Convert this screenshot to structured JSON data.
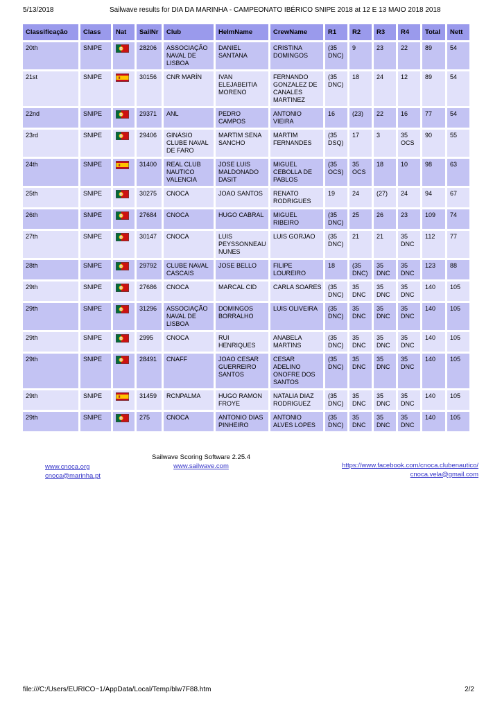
{
  "page": {
    "print_header": {
      "date": "5/13/2018",
      "title": "Sailwave results for DIA DA MARINHA - CAMPEONATO IBÉRICO SNIPE 2018 at 12 E 13 MAIO 2018 2018"
    },
    "print_footer": {
      "file_url": "file:///C:/Users/EURICO~1/AppData/Local/Temp/blw7F88.htm",
      "page_number": "2/2"
    }
  },
  "table": {
    "columns": [
      "Classificação",
      "Class",
      "Nat",
      "SailNr",
      "Club",
      "HelmName",
      "CrewName",
      "R1",
      "R2",
      "R3",
      "R4",
      "Total",
      "Nett"
    ],
    "rows": [
      {
        "rank": "20th",
        "class": "SNIPE",
        "nat": "PT",
        "sailnr": "28206",
        "club": "ASSOCIAÇÃO NAVAL DE LISBOA",
        "helm": "DANIEL SANTANA",
        "crew": "CRISTINA DOMINGOS",
        "r1": "(35 DNC)",
        "r2": "9",
        "r3": "23",
        "r4": "22",
        "total": "89",
        "nett": "54"
      },
      {
        "rank": "21st",
        "class": "SNIPE",
        "nat": "ES",
        "sailnr": "30156",
        "club": "CNR MARÍN",
        "helm": "IVAN ELEJABEITIA MORENO",
        "crew": "FERNANDO GONZALEZ DE CANALES MARTINEZ",
        "r1": "(35 DNC)",
        "r2": "18",
        "r3": "24",
        "r4": "12",
        "total": "89",
        "nett": "54"
      },
      {
        "rank": "22nd",
        "class": "SNIPE",
        "nat": "PT",
        "sailnr": "29371",
        "club": "ANL",
        "helm": "PEDRO CAMPOS",
        "crew": "ANTONIO VIEIRA",
        "r1": "16",
        "r2": "(23)",
        "r3": "22",
        "r4": "16",
        "total": "77",
        "nett": "54"
      },
      {
        "rank": "23rd",
        "class": "SNIPE",
        "nat": "PT",
        "sailnr": "29406",
        "club": "GINÁSIO CLUBE NAVAL DE FARO",
        "helm": "MARTIM SENA SANCHO",
        "crew": "MARTIM FERNANDES",
        "r1": "(35 DSQ)",
        "r2": "17",
        "r3": "3",
        "r4": "35 OCS",
        "total": "90",
        "nett": "55"
      },
      {
        "rank": "24th",
        "class": "SNIPE",
        "nat": "ES",
        "sailnr": "31400",
        "club": "REAL CLUB NAUTICO VALENCIA",
        "helm": "JOSE LUIS MALDONADO DASIT",
        "crew": "MIGUEL CEBOLLA DE PABLOS",
        "r1": "(35 OCS)",
        "r2": "35 OCS",
        "r3": "18",
        "r4": "10",
        "total": "98",
        "nett": "63"
      },
      {
        "rank": "25th",
        "class": "SNIPE",
        "nat": "PT",
        "sailnr": "30275",
        "club": "CNOCA",
        "helm": "JOAO SANTOS",
        "crew": "RENATO RODRIGUES",
        "r1": "19",
        "r2": "24",
        "r3": "(27)",
        "r4": "24",
        "total": "94",
        "nett": "67"
      },
      {
        "rank": "26th",
        "class": "SNIPE",
        "nat": "PT",
        "sailnr": "27684",
        "club": "CNOCA",
        "helm": "HUGO CABRAL",
        "crew": "MIGUEL RIBEIRO",
        "r1": "(35 DNC)",
        "r2": "25",
        "r3": "26",
        "r4": "23",
        "total": "109",
        "nett": "74"
      },
      {
        "rank": "27th",
        "class": "SNIPE",
        "nat": "PT",
        "sailnr": "30147",
        "club": "CNOCA",
        "helm": "LUIS PEYSSONNEAU NUNES",
        "crew": "LUIS GORJAO",
        "r1": "(35 DNC)",
        "r2": "21",
        "r3": "21",
        "r4": "35 DNC",
        "total": "112",
        "nett": "77"
      },
      {
        "rank": "28th",
        "class": "SNIPE",
        "nat": "PT",
        "sailnr": "29792",
        "club": "CLUBE NAVAL CASCAIS",
        "helm": "JOSE BELLO",
        "crew": "FILIPE LOUREIRO",
        "r1": "18",
        "r2": "(35 DNC)",
        "r3": "35 DNC",
        "r4": "35 DNC",
        "total": "123",
        "nett": "88"
      },
      {
        "rank": "29th",
        "class": "SNIPE",
        "nat": "PT",
        "sailnr": "27686",
        "club": "CNOCA",
        "helm": "MARCAL CID",
        "crew": "CARLA SOARES",
        "r1": "(35 DNC)",
        "r2": "35 DNC",
        "r3": "35 DNC",
        "r4": "35 DNC",
        "total": "140",
        "nett": "105"
      },
      {
        "rank": "29th",
        "class": "SNIPE",
        "nat": "PT",
        "sailnr": "31296",
        "club": "ASSOCIAÇÃO NAVAL DE LISBOA",
        "helm": "DOMINGOS BORRALHO",
        "crew": "LUIS OLIVEIRA",
        "r1": "(35 DNC)",
        "r2": "35 DNC",
        "r3": "35 DNC",
        "r4": "35 DNC",
        "total": "140",
        "nett": "105"
      },
      {
        "rank": "29th",
        "class": "SNIPE",
        "nat": "PT",
        "sailnr": "2995",
        "club": "CNOCA",
        "helm": "RUI HENRIQUES",
        "crew": "ANABELA MARTINS",
        "r1": "(35 DNC)",
        "r2": "35 DNC",
        "r3": "35 DNC",
        "r4": "35 DNC",
        "total": "140",
        "nett": "105"
      },
      {
        "rank": "29th",
        "class": "SNIPE",
        "nat": "PT",
        "sailnr": "28491",
        "club": "CNAFF",
        "helm": "JOAO CESAR GUERREIRO SANTOS",
        "crew": "CESAR ADELINO ONOFRE DOS SANTOS",
        "r1": "(35 DNC)",
        "r2": "35 DNC",
        "r3": "35 DNC",
        "r4": "35 DNC",
        "total": "140",
        "nett": "105"
      },
      {
        "rank": "29th",
        "class": "SNIPE",
        "nat": "ES",
        "sailnr": "31459",
        "club": "RCNPALMA",
        "helm": "HUGO RAMON FROYE",
        "crew": "NATALIA DIAZ RODRIGUEZ",
        "r1": "(35 DNC)",
        "r2": "35 DNC",
        "r3": "35 DNC",
        "r4": "35 DNC",
        "total": "140",
        "nett": "105"
      },
      {
        "rank": "29th",
        "class": "SNIPE",
        "nat": "PT",
        "sailnr": "275",
        "club": "CNOCA",
        "helm": "ANTONIO DIAS PINHEIRO",
        "crew": "ANTONIO ALVES LOPES",
        "r1": "(35 DNC)",
        "r2": "35 DNC",
        "r3": "35 DNC",
        "r4": "35 DNC",
        "total": "140",
        "nett": "105"
      }
    ]
  },
  "footer": {
    "software": "Sailwave Scoring Software 2.25.4",
    "sailwave_link": "www.sailwave.com",
    "left_links": [
      "www.cnoca.org",
      "cnoca@marinha.pt"
    ],
    "right_links": [
      "https://www.facebook.com/cnoca.clubenautico/",
      "cnoca.vela@gmail.com"
    ]
  },
  "colors": {
    "table_header_bg": "#9a9aec",
    "row_dark": "#c3c3f3",
    "row_light": "#e1e1fa",
    "link": "#3232c8",
    "flag_pt_green": "#046a38",
    "flag_pt_red": "#cc1111",
    "flag_pt_yellow": "#f0c020",
    "flag_es_red": "#c60b1e",
    "flag_es_yellow": "#ffc400"
  }
}
